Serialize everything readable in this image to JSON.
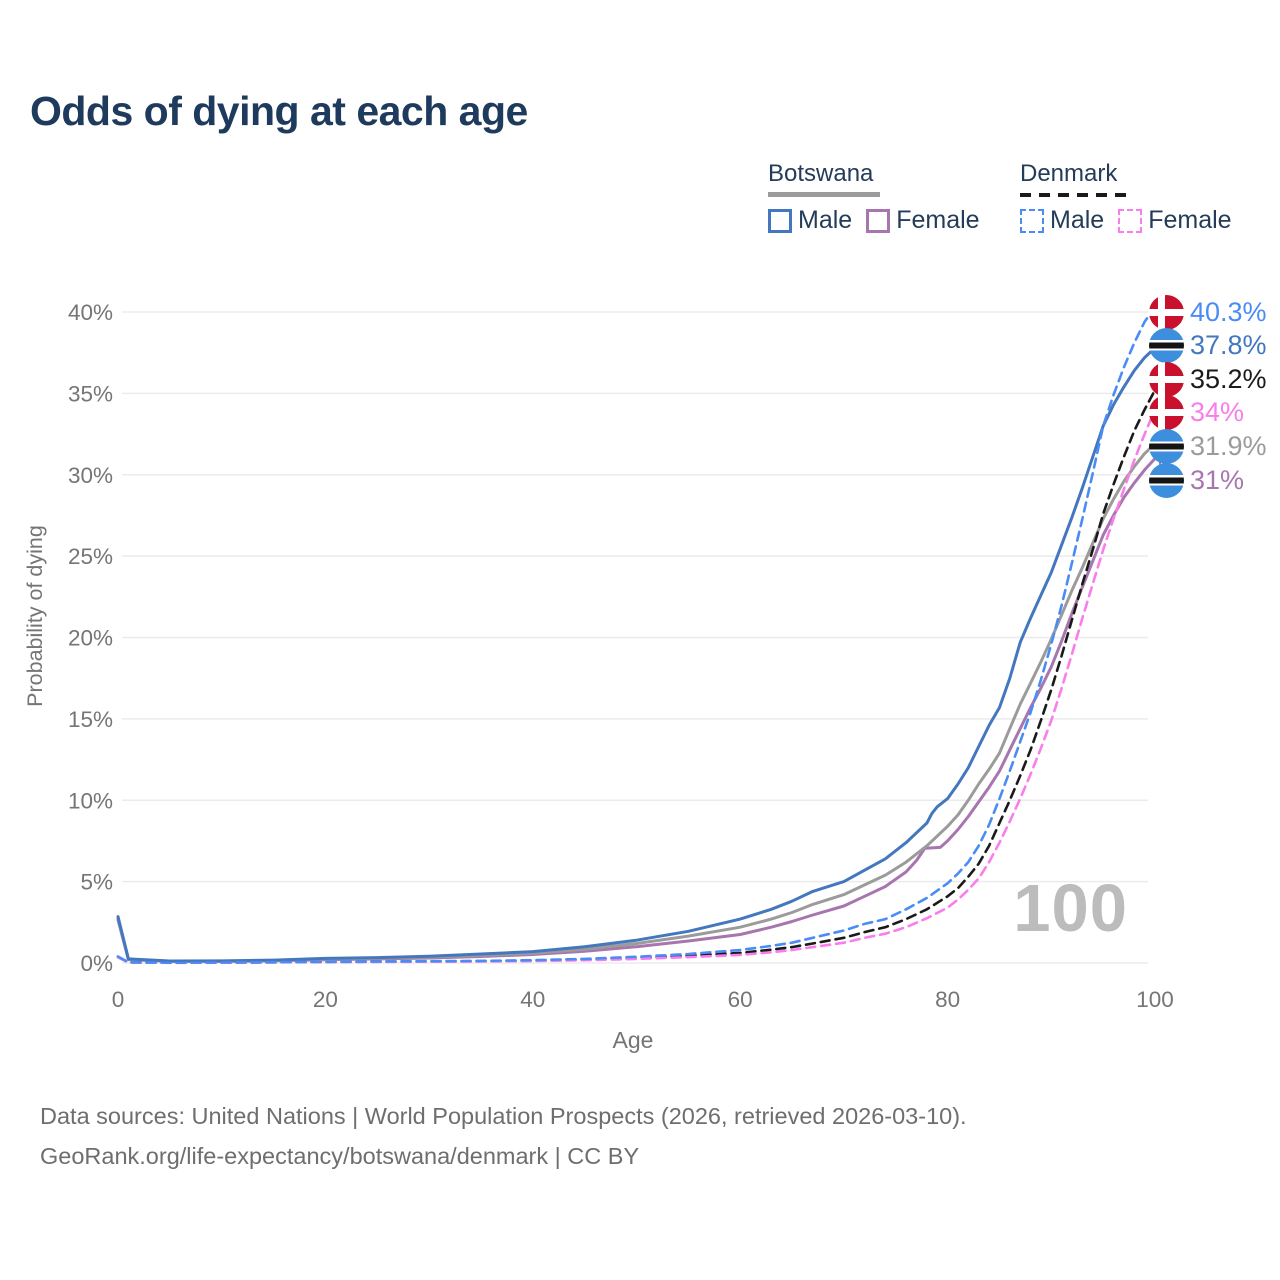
{
  "title": "Odds of dying at each age",
  "watermark": "100",
  "legend": {
    "groups": [
      {
        "label": "Botswana",
        "line_style": "solid",
        "underline_color": "#9B9B9B",
        "items": [
          {
            "label": "Male",
            "color": "#4377BE"
          },
          {
            "label": "Female",
            "color": "#A876AE"
          }
        ]
      },
      {
        "label": "Denmark",
        "line_style": "dashed",
        "underline_color": "#1A1A1A",
        "items": [
          {
            "label": "Male",
            "color": "#4A8CF5"
          },
          {
            "label": "Female",
            "color": "#F97DEB"
          }
        ]
      }
    ]
  },
  "chart_data": {
    "type": "line",
    "title": "Odds of dying at each age",
    "xlabel": "Age",
    "ylabel": "Probability of dying",
    "xlim": [
      0,
      100
    ],
    "ylim": [
      0,
      41
    ],
    "x_ticks": [
      0,
      20,
      40,
      60,
      80,
      100
    ],
    "y_ticks": [
      0,
      5,
      10,
      15,
      20,
      25,
      30,
      35,
      40
    ],
    "y_tick_labels": [
      "0%",
      "5%",
      "10%",
      "15%",
      "20%",
      "25%",
      "30%",
      "35%",
      "40%"
    ],
    "grid": "horizontal",
    "legend_position": "top-right",
    "hover_age": "100",
    "series": [
      {
        "id": "botswana-female",
        "name": "Botswana Female",
        "color": "#A876AE",
        "dash": false,
        "end_label": "31%",
        "flag": "botswana",
        "points": [
          [
            0,
            2.65
          ],
          [
            1,
            0.21
          ],
          [
            5,
            0.1
          ],
          [
            10,
            0.1
          ],
          [
            15,
            0.13
          ],
          [
            20,
            0.2
          ],
          [
            25,
            0.25
          ],
          [
            30,
            0.31
          ],
          [
            35,
            0.4
          ],
          [
            40,
            0.52
          ],
          [
            45,
            0.72
          ],
          [
            50,
            1.0
          ],
          [
            55,
            1.35
          ],
          [
            60,
            1.75
          ],
          [
            63,
            2.2
          ],
          [
            65,
            2.55
          ],
          [
            67,
            2.95
          ],
          [
            70,
            3.5
          ],
          [
            72,
            4.1
          ],
          [
            74,
            4.7
          ],
          [
            76,
            5.6
          ],
          [
            77,
            6.3
          ],
          [
            77.8,
            7.05
          ],
          [
            79.3,
            7.1
          ],
          [
            80,
            7.5
          ],
          [
            81,
            8.2
          ],
          [
            82,
            9.0
          ],
          [
            83,
            9.9
          ],
          [
            84,
            10.8
          ],
          [
            85,
            11.8
          ],
          [
            86,
            13.1
          ],
          [
            87,
            14.4
          ],
          [
            88,
            15.7
          ],
          [
            89,
            16.9
          ],
          [
            90,
            18.2
          ],
          [
            91,
            19.8
          ],
          [
            92,
            21.5
          ],
          [
            93,
            23.1
          ],
          [
            94,
            24.7
          ],
          [
            95,
            26.3
          ],
          [
            96,
            27.5
          ],
          [
            97,
            28.6
          ],
          [
            98,
            29.5
          ],
          [
            99,
            30.3
          ],
          [
            100,
            31
          ]
        ]
      },
      {
        "id": "botswana-both",
        "name": "Botswana",
        "color": "#9B9B9B",
        "dash": false,
        "end_label": "31.9%",
        "flag": "botswana",
        "points": [
          [
            0,
            2.75
          ],
          [
            1,
            0.23
          ],
          [
            5,
            0.11
          ],
          [
            10,
            0.11
          ],
          [
            15,
            0.15
          ],
          [
            20,
            0.24
          ],
          [
            25,
            0.29
          ],
          [
            30,
            0.36
          ],
          [
            35,
            0.47
          ],
          [
            40,
            0.6
          ],
          [
            45,
            0.85
          ],
          [
            50,
            1.2
          ],
          [
            55,
            1.65
          ],
          [
            60,
            2.2
          ],
          [
            63,
            2.7
          ],
          [
            65,
            3.1
          ],
          [
            67,
            3.6
          ],
          [
            70,
            4.2
          ],
          [
            72,
            4.8
          ],
          [
            74,
            5.4
          ],
          [
            76,
            6.2
          ],
          [
            78,
            7.2
          ],
          [
            79,
            7.8
          ],
          [
            80,
            8.4
          ],
          [
            81,
            9.1
          ],
          [
            82,
            10.0
          ],
          [
            83,
            11.0
          ],
          [
            84,
            11.9
          ],
          [
            85,
            12.9
          ],
          [
            86,
            14.4
          ],
          [
            87,
            15.9
          ],
          [
            88,
            17.2
          ],
          [
            89,
            18.5
          ],
          [
            90,
            19.9
          ],
          [
            91,
            21.4
          ],
          [
            92,
            22.9
          ],
          [
            93,
            24.3
          ],
          [
            94,
            25.8
          ],
          [
            95,
            27.3
          ],
          [
            96,
            28.5
          ],
          [
            97,
            29.6
          ],
          [
            98,
            30.5
          ],
          [
            99,
            31.3
          ],
          [
            100,
            31.9
          ]
        ]
      },
      {
        "id": "botswana-male",
        "name": "Botswana Male",
        "color": "#4377BE",
        "dash": false,
        "end_label": "37.8%",
        "flag": "botswana",
        "points": [
          [
            0,
            2.85
          ],
          [
            1,
            0.25
          ],
          [
            5,
            0.12
          ],
          [
            10,
            0.13
          ],
          [
            15,
            0.18
          ],
          [
            20,
            0.28
          ],
          [
            25,
            0.33
          ],
          [
            30,
            0.42
          ],
          [
            35,
            0.55
          ],
          [
            40,
            0.7
          ],
          [
            45,
            1.0
          ],
          [
            50,
            1.4
          ],
          [
            55,
            1.95
          ],
          [
            60,
            2.7
          ],
          [
            63,
            3.3
          ],
          [
            65,
            3.8
          ],
          [
            67,
            4.4
          ],
          [
            70,
            5.0
          ],
          [
            72,
            5.7
          ],
          [
            74,
            6.4
          ],
          [
            76,
            7.4
          ],
          [
            78,
            8.6
          ],
          [
            78.5,
            9.2
          ],
          [
            79,
            9.6
          ],
          [
            80,
            10.1
          ],
          [
            81,
            11.0
          ],
          [
            82,
            12.0
          ],
          [
            83,
            13.3
          ],
          [
            84,
            14.6
          ],
          [
            85,
            15.7
          ],
          [
            86,
            17.5
          ],
          [
            87,
            19.7
          ],
          [
            88,
            21.2
          ],
          [
            89,
            22.6
          ],
          [
            90,
            24.0
          ],
          [
            91,
            25.7
          ],
          [
            92,
            27.4
          ],
          [
            93,
            29.2
          ],
          [
            94,
            31.1
          ],
          [
            95,
            33.0
          ],
          [
            96,
            34.3
          ],
          [
            97,
            35.4
          ],
          [
            98,
            36.4
          ],
          [
            99,
            37.2
          ],
          [
            100,
            37.8
          ]
        ]
      },
      {
        "id": "denmark-both",
        "name": "Denmark",
        "color": "#1A1A1A",
        "dash": true,
        "end_label": "35.2%",
        "flag": "denmark",
        "points": [
          [
            0,
            0.37
          ],
          [
            1,
            0.035
          ],
          [
            5,
            0.02
          ],
          [
            10,
            0.025
          ],
          [
            15,
            0.045
          ],
          [
            20,
            0.07
          ],
          [
            25,
            0.08
          ],
          [
            30,
            0.09
          ],
          [
            35,
            0.11
          ],
          [
            40,
            0.14
          ],
          [
            45,
            0.2
          ],
          [
            50,
            0.3
          ],
          [
            55,
            0.44
          ],
          [
            60,
            0.62
          ],
          [
            63,
            0.82
          ],
          [
            65,
            0.98
          ],
          [
            67,
            1.2
          ],
          [
            70,
            1.55
          ],
          [
            72,
            1.9
          ],
          [
            74,
            2.2
          ],
          [
            76,
            2.7
          ],
          [
            78,
            3.3
          ],
          [
            80,
            4.1
          ],
          [
            81,
            4.6
          ],
          [
            82,
            5.3
          ],
          [
            83,
            6.1
          ],
          [
            84,
            7.2
          ],
          [
            85,
            8.6
          ],
          [
            86,
            10.0
          ],
          [
            87,
            11.5
          ],
          [
            88,
            13.1
          ],
          [
            89,
            14.9
          ],
          [
            90,
            16.8
          ],
          [
            91,
            18.9
          ],
          [
            92,
            21.1
          ],
          [
            93,
            23.3
          ],
          [
            94,
            25.4
          ],
          [
            95,
            27.6
          ],
          [
            96,
            29.4
          ],
          [
            97,
            31.1
          ],
          [
            98,
            32.7
          ],
          [
            99,
            34.0
          ],
          [
            100,
            35.2
          ]
        ]
      },
      {
        "id": "denmark-female",
        "name": "Denmark Female",
        "color": "#F97DEB",
        "dash": true,
        "end_label": "34%",
        "flag": "denmark",
        "points": [
          [
            0,
            0.35
          ],
          [
            1,
            0.03
          ],
          [
            5,
            0.015
          ],
          [
            10,
            0.02
          ],
          [
            15,
            0.04
          ],
          [
            20,
            0.06
          ],
          [
            25,
            0.07
          ],
          [
            30,
            0.08
          ],
          [
            35,
            0.09
          ],
          [
            40,
            0.12
          ],
          [
            45,
            0.17
          ],
          [
            50,
            0.25
          ],
          [
            55,
            0.36
          ],
          [
            60,
            0.5
          ],
          [
            63,
            0.66
          ],
          [
            65,
            0.8
          ],
          [
            67,
            0.98
          ],
          [
            70,
            1.25
          ],
          [
            72,
            1.55
          ],
          [
            74,
            1.8
          ],
          [
            76,
            2.2
          ],
          [
            78,
            2.75
          ],
          [
            80,
            3.4
          ],
          [
            81,
            3.9
          ],
          [
            82,
            4.5
          ],
          [
            83,
            5.2
          ],
          [
            84,
            6.2
          ],
          [
            85,
            7.4
          ],
          [
            86,
            8.7
          ],
          [
            87,
            10.1
          ],
          [
            88,
            11.6
          ],
          [
            89,
            13.2
          ],
          [
            90,
            14.9
          ],
          [
            91,
            16.9
          ],
          [
            92,
            19.0
          ],
          [
            93,
            21.2
          ],
          [
            94,
            23.3
          ],
          [
            95,
            25.4
          ],
          [
            96,
            27.3
          ],
          [
            97,
            29.1
          ],
          [
            98,
            30.9
          ],
          [
            99,
            32.5
          ],
          [
            100,
            34
          ]
        ]
      },
      {
        "id": "denmark-male",
        "name": "Denmark Male",
        "color": "#4A8CF5",
        "dash": true,
        "end_label": "40.3%",
        "flag": "denmark",
        "points": [
          [
            0,
            0.4
          ],
          [
            1,
            0.04
          ],
          [
            5,
            0.02
          ],
          [
            10,
            0.03
          ],
          [
            15,
            0.05
          ],
          [
            20,
            0.08
          ],
          [
            25,
            0.09
          ],
          [
            30,
            0.11
          ],
          [
            35,
            0.13
          ],
          [
            40,
            0.17
          ],
          [
            45,
            0.25
          ],
          [
            50,
            0.38
          ],
          [
            55,
            0.55
          ],
          [
            60,
            0.8
          ],
          [
            63,
            1.05
          ],
          [
            65,
            1.25
          ],
          [
            67,
            1.55
          ],
          [
            70,
            2.0
          ],
          [
            72,
            2.4
          ],
          [
            74,
            2.7
          ],
          [
            76,
            3.3
          ],
          [
            78,
            4.0
          ],
          [
            80,
            4.9
          ],
          [
            81,
            5.5
          ],
          [
            82,
            6.2
          ],
          [
            83,
            7.2
          ],
          [
            84,
            8.5
          ],
          [
            85,
            10.1
          ],
          [
            86,
            11.8
          ],
          [
            87,
            13.6
          ],
          [
            88,
            15.4
          ],
          [
            89,
            17.4
          ],
          [
            90,
            19.6
          ],
          [
            91,
            22.0
          ],
          [
            92,
            24.6
          ],
          [
            93,
            27.3
          ],
          [
            94,
            30.1
          ],
          [
            95,
            33.0
          ],
          [
            96,
            34.9
          ],
          [
            97,
            36.6
          ],
          [
            98,
            38.1
          ],
          [
            99,
            39.4
          ],
          [
            100,
            40.3
          ]
        ]
      }
    ]
  },
  "footer": {
    "line1": "Data sources: United Nations | World Population Prospects (2026, retrieved 2026-03-10).",
    "line2": "GeoRank.org/life-expectancy/botswana/denmark | CC BY"
  }
}
